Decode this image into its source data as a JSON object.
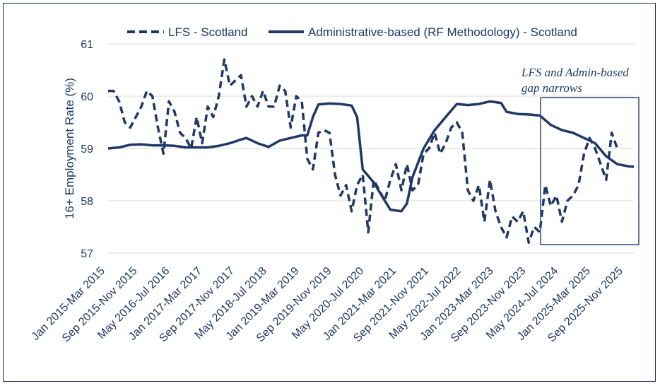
{
  "chart_data": {
    "type": "line",
    "title": "",
    "xlabel": "",
    "ylabel": "16+ Employment Rate (%)",
    "ylim": [
      57,
      61
    ],
    "yticks": [
      57,
      58,
      59,
      60,
      61
    ],
    "grid": "horizontal",
    "legend_position": "top",
    "x_tick_labels": [
      "Jan 2015-Mar 2015",
      "Sep 2015-Nov 2015",
      "May 2016-Jul 2016",
      "Jan 2017-Mar 2017",
      "Sep 2017-Nov 2017",
      "May 2018-Jul 2018",
      "Jan 2019-Mar 2019",
      "Sep 2019-Nov 2019",
      "May 2020-Jul 2020",
      "Jan 2021-Mar 2021",
      "Sep 2021-Nov 2021",
      "May 2022-Jul 2022",
      "Jan 2023-Mar 2023",
      "Sep 2023-Nov 2023",
      "May 2024-Jul 2024",
      "Jan 2025-Mar 2025",
      "Sep 2025-Nov 2025"
    ],
    "series": [
      {
        "name": "LFS - Scotland",
        "style": "dashed",
        "color": "#1f3864",
        "points": [
          [
            0,
            60.1
          ],
          [
            1,
            60.1
          ],
          [
            2,
            59.9
          ],
          [
            3,
            59.5
          ],
          [
            4,
            59.4
          ],
          [
            5,
            59.6
          ],
          [
            6,
            59.8
          ],
          [
            7,
            60.1
          ],
          [
            8,
            60.0
          ],
          [
            9,
            59.4
          ],
          [
            10,
            58.9
          ],
          [
            11,
            59.9
          ],
          [
            12,
            59.7
          ],
          [
            13,
            59.3
          ],
          [
            14,
            59.2
          ],
          [
            15,
            59.0
          ],
          [
            16,
            59.6
          ],
          [
            17,
            59.1
          ],
          [
            18,
            59.8
          ],
          [
            19,
            59.6
          ],
          [
            20,
            60.0
          ],
          [
            21,
            60.7
          ],
          [
            22,
            60.2
          ],
          [
            23,
            60.3
          ],
          [
            24,
            60.4
          ],
          [
            25,
            59.8
          ],
          [
            26,
            60.0
          ],
          [
            27,
            59.8
          ],
          [
            28,
            60.1
          ],
          [
            29,
            59.8
          ],
          [
            30,
            59.8
          ],
          [
            31,
            60.2
          ],
          [
            32,
            60.1
          ],
          [
            33,
            59.4
          ],
          [
            34,
            60.0
          ],
          [
            35,
            59.9
          ],
          [
            36,
            58.8
          ],
          [
            37,
            58.6
          ],
          [
            38,
            59.3
          ],
          [
            39,
            59.35
          ],
          [
            40,
            59.3
          ],
          [
            41,
            58.5
          ],
          [
            42,
            58.1
          ],
          [
            43,
            58.3
          ],
          [
            44,
            57.8
          ],
          [
            45,
            58.3
          ],
          [
            46,
            58.5
          ],
          [
            47,
            57.4
          ],
          [
            48,
            58.4
          ],
          [
            49,
            58.2
          ],
          [
            50,
            58.0
          ],
          [
            51,
            58.4
          ],
          [
            52,
            58.7
          ],
          [
            53,
            58.2
          ],
          [
            54,
            58.7
          ],
          [
            55,
            58.2
          ],
          [
            56,
            58.3
          ],
          [
            57,
            58.9
          ],
          [
            58,
            59.0
          ],
          [
            59,
            59.3
          ],
          [
            60,
            58.9
          ],
          [
            61,
            59.1
          ],
          [
            62,
            59.4
          ],
          [
            63,
            59.5
          ],
          [
            64,
            59.3
          ],
          [
            65,
            58.2
          ],
          [
            66,
            58.0
          ],
          [
            67,
            58.3
          ],
          [
            68,
            57.6
          ],
          [
            69,
            58.4
          ],
          [
            70,
            57.8
          ],
          [
            71,
            57.5
          ],
          [
            72,
            57.3
          ],
          [
            73,
            57.7
          ],
          [
            74,
            57.6
          ],
          [
            75,
            57.8
          ],
          [
            76,
            57.2
          ],
          [
            77,
            57.5
          ],
          [
            78,
            57.4
          ],
          [
            79,
            58.3
          ],
          [
            80,
            57.9
          ],
          [
            81,
            58.1
          ],
          [
            82,
            57.6
          ],
          [
            83,
            58.0
          ],
          [
            84,
            58.1
          ],
          [
            85,
            58.3
          ],
          [
            86,
            58.9
          ],
          [
            87,
            59.2
          ],
          [
            88,
            59.0
          ],
          [
            89,
            58.7
          ],
          [
            90,
            58.4
          ],
          [
            91,
            59.3
          ],
          [
            92,
            59.0
          ]
        ]
      },
      {
        "name": "Administrative-based (RF Methodology) - Scotland",
        "style": "solid",
        "color": "#1f3864",
        "points": [
          [
            0,
            59.0
          ],
          [
            2,
            59.02
          ],
          [
            4,
            59.07
          ],
          [
            6,
            59.08
          ],
          [
            8,
            59.06
          ],
          [
            10,
            59.06
          ],
          [
            12,
            59.05
          ],
          [
            14,
            59.02
          ],
          [
            16,
            59.02
          ],
          [
            18,
            59.02
          ],
          [
            20,
            59.05
          ],
          [
            22,
            59.1
          ],
          [
            24,
            59.17
          ],
          [
            25,
            59.2
          ],
          [
            27,
            59.1
          ],
          [
            29,
            59.03
          ],
          [
            31,
            59.15
          ],
          [
            33,
            59.2
          ],
          [
            35,
            59.25
          ],
          [
            36,
            59.25
          ],
          [
            37,
            59.6
          ],
          [
            38,
            59.84
          ],
          [
            40,
            59.86
          ],
          [
            42,
            59.85
          ],
          [
            44,
            59.82
          ],
          [
            45,
            59.6
          ],
          [
            46,
            58.6
          ],
          [
            48,
            58.35
          ],
          [
            50,
            58.0
          ],
          [
            51,
            57.83
          ],
          [
            53,
            57.8
          ],
          [
            54,
            57.95
          ],
          [
            55,
            58.45
          ],
          [
            57,
            59.0
          ],
          [
            59,
            59.35
          ],
          [
            61,
            59.6
          ],
          [
            63,
            59.85
          ],
          [
            65,
            59.83
          ],
          [
            67,
            59.85
          ],
          [
            69,
            59.9
          ],
          [
            71,
            59.87
          ],
          [
            72,
            59.7
          ],
          [
            74,
            59.66
          ],
          [
            76,
            59.65
          ],
          [
            78,
            59.63
          ],
          [
            80,
            59.45
          ],
          [
            82,
            59.35
          ],
          [
            84,
            59.3
          ],
          [
            86,
            59.2
          ],
          [
            88,
            59.1
          ],
          [
            90,
            58.85
          ],
          [
            92,
            58.7
          ],
          [
            94,
            58.66
          ],
          [
            95,
            58.65
          ]
        ]
      }
    ],
    "annotations": [
      {
        "text_lines": [
          "LFS and Admin-based",
          "gap narrows"
        ]
      }
    ]
  }
}
